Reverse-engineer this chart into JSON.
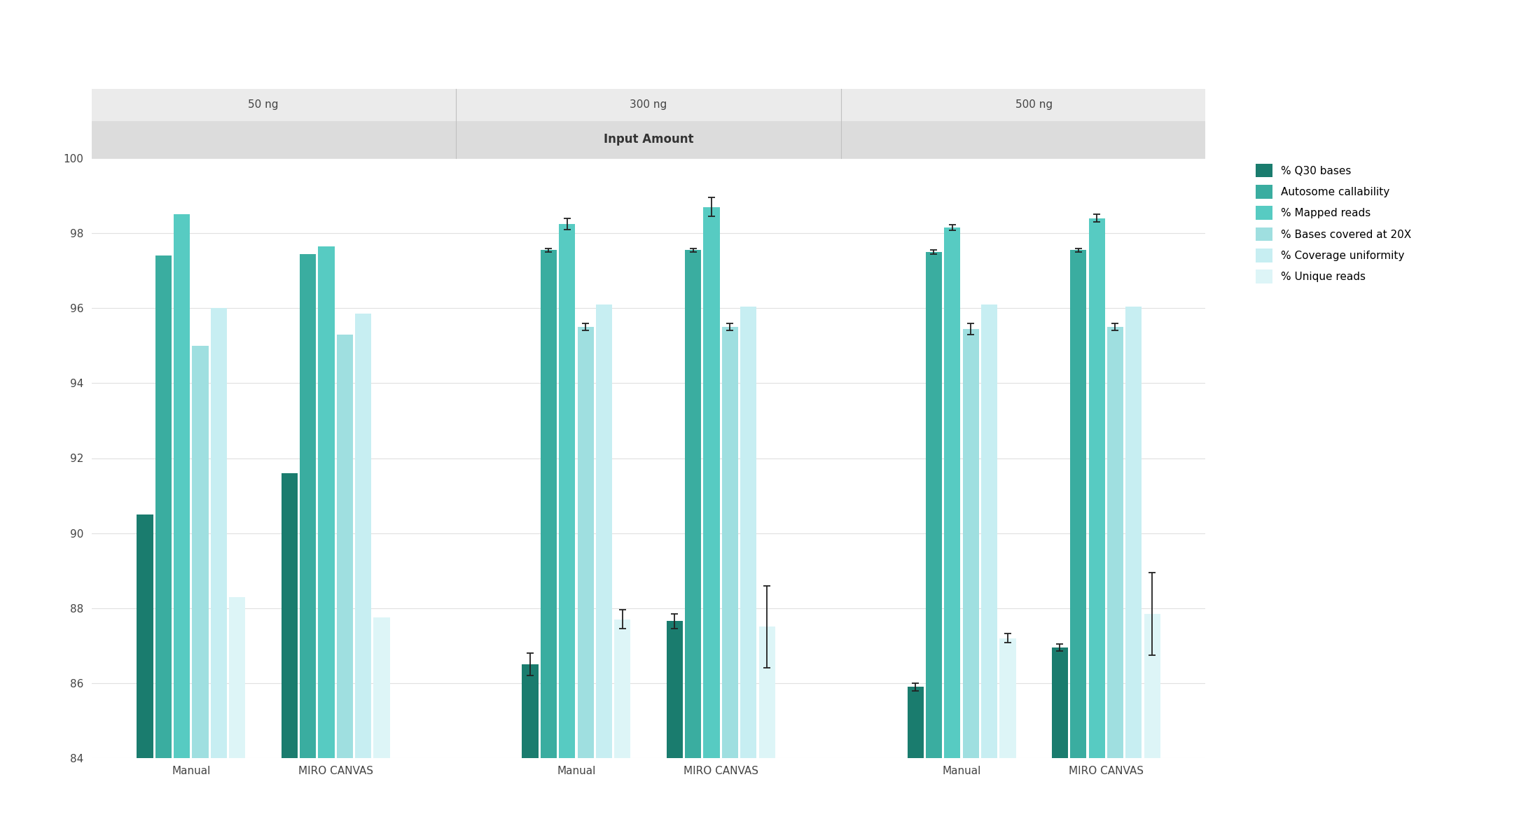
{
  "groups": [
    "Manual",
    "MIRO CANVAS",
    "Manual",
    "MIRO CANVAS",
    "Manual",
    "MIRO CANVAS"
  ],
  "input_amounts": [
    "50 ng",
    "300 ng",
    "500 ng"
  ],
  "series_labels": [
    "% Q30 bases",
    "Autosome callability",
    "% Mapped reads",
    "% Bases covered at 20X",
    "% Coverage uniformity",
    "% Unique reads"
  ],
  "colors": [
    "#1a7c6e",
    "#3aada0",
    "#57cbc2",
    "#9fdfe0",
    "#c7eef2",
    "#ddf5f7"
  ],
  "bar_values": [
    [
      90.5,
      97.4,
      98.5,
      95.0,
      96.0,
      88.3
    ],
    [
      91.6,
      97.45,
      97.65,
      95.3,
      95.85,
      87.75
    ],
    [
      86.5,
      97.55,
      98.25,
      95.5,
      96.1,
      87.7
    ],
    [
      87.65,
      97.55,
      98.7,
      95.5,
      96.05,
      87.5
    ],
    [
      85.9,
      97.5,
      98.15,
      95.45,
      96.1,
      87.2
    ],
    [
      86.95,
      97.55,
      98.4,
      95.5,
      96.05,
      87.85
    ]
  ],
  "error_bars": [
    [
      null,
      null,
      null,
      null,
      null,
      null
    ],
    [
      null,
      null,
      null,
      null,
      null,
      null
    ],
    [
      0.3,
      0.05,
      0.15,
      0.1,
      null,
      0.25
    ],
    [
      0.2,
      0.05,
      0.25,
      0.1,
      null,
      1.1
    ],
    [
      0.1,
      0.05,
      0.07,
      0.15,
      null,
      0.12
    ],
    [
      0.1,
      0.05,
      0.1,
      0.1,
      null,
      1.1
    ]
  ],
  "ylim": [
    84,
    100
  ],
  "yticks": [
    84,
    86,
    88,
    90,
    92,
    94,
    96,
    98,
    100
  ],
  "group_centers": [
    0.48,
    1.38,
    2.88,
    3.78,
    5.28,
    6.18
  ],
  "bar_width": 0.115,
  "title": "Input Amount",
  "background_color": "#ffffff",
  "header_dark_color": "#dcdcdc",
  "header_light_color": "#ebebeb",
  "axis_text_color": "#444444",
  "grid_color": "#e0e0e0",
  "tick_fontsize": 11,
  "legend_fontsize": 11
}
